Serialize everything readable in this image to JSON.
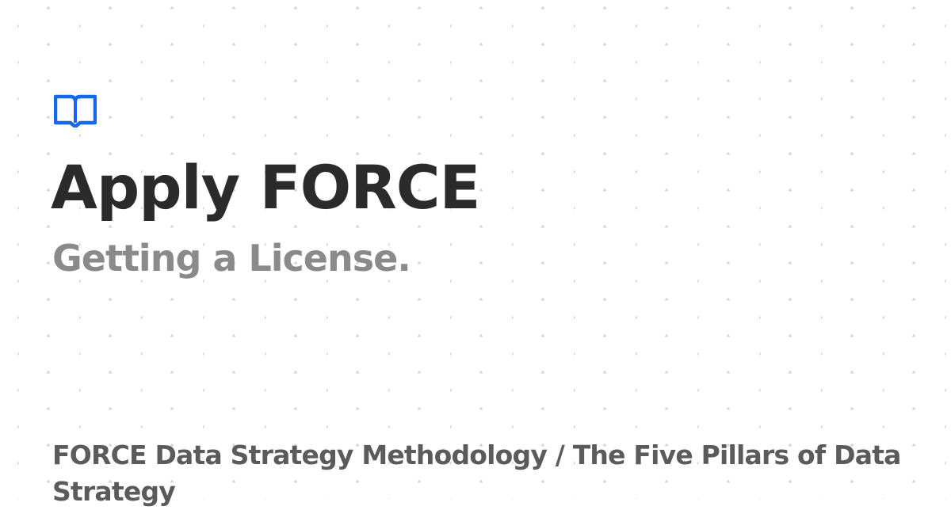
{
  "title": "Apply FORCE",
  "subtitle": "Getting a License.",
  "breadcrumb": "FORCE Data Strategy Methodology / The Five Pillars of Data Strategy",
  "logo_icon": "open-book-icon",
  "colors": {
    "background": "#ffffff",
    "pattern_dot": "#d4d4d4",
    "accent": "#1467f0",
    "title": "#2b2b2b",
    "subtitle": "#8a8a8a",
    "breadcrumb": "#5b5b5b"
  }
}
